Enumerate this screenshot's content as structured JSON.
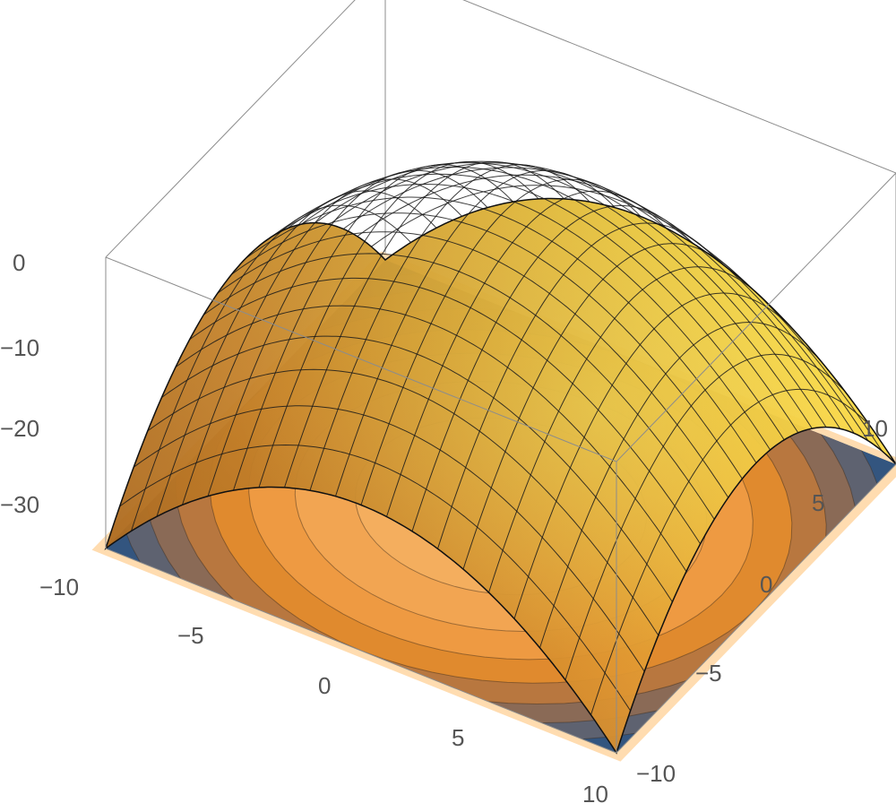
{
  "chart_data": {
    "type": "surface3d",
    "surface": {
      "x_range": [
        -10,
        10
      ],
      "y_range": [
        -10,
        10
      ],
      "z_peak": 0,
      "z_corner": -37,
      "mesh_lines_per_axis": 20,
      "color_high": "#ffe23c",
      "color_low": "#e07f1e",
      "mesh_color": "#1a1a1a"
    },
    "contour_floor": {
      "levels": 8,
      "colors": [
        "#33557f",
        "#5e6270",
        "#8a6a56",
        "#b8773f",
        "#e08a2e",
        "#ee9a42",
        "#f2a552",
        "#f4ae5e"
      ],
      "border_color": "#ffdcb0"
    },
    "axes": {
      "x": {
        "ticks": [
          -10,
          -5,
          0,
          5,
          10
        ],
        "labels": [
          "−10",
          "−5",
          "0",
          "5",
          "10"
        ]
      },
      "y": {
        "ticks": [
          -10,
          -5,
          0,
          5,
          10
        ],
        "labels": [
          "−10",
          "−5",
          "0",
          "5",
          "10"
        ]
      },
      "z": {
        "ticks": [
          0,
          -10,
          -20,
          -30
        ],
        "labels": [
          "0",
          "−10",
          "−20",
          "−30"
        ],
        "range": [
          -37,
          0
        ]
      }
    },
    "box_color": "#8c8c8c",
    "background": "#ffffff"
  }
}
